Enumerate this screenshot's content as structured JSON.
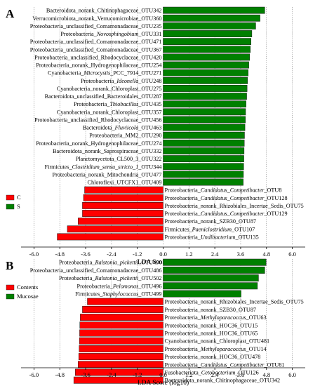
{
  "chart_data": [
    {
      "type": "bar",
      "panel_label": "A",
      "orientation": "horizontal",
      "xlabel": "LDA Score (log10)",
      "xlim": [
        -6.6,
        6.6
      ],
      "xticks": [
        -6.0,
        -4.8,
        -3.6,
        -2.4,
        -1.2,
        0.0,
        1.2,
        2.4,
        3.6,
        4.8,
        6.0
      ],
      "xtick_labels": [
        "-6.0",
        "-4.8",
        "-3.6",
        "-2.4",
        "-1.2",
        "0.0",
        "1.2",
        "2.4",
        "3.6",
        "4.8",
        "6.0"
      ],
      "grid": "vertical dotted",
      "legend_position": "left",
      "series": [
        {
          "name": "C",
          "color": "#ff0000"
        },
        {
          "name": "S",
          "color": "#008000"
        }
      ],
      "bars": [
        {
          "group": "S",
          "label": [
            {
              "t": "Bacteroidota_norank_Chitinophagaceae_OTU342"
            }
          ],
          "value": 4.72
        },
        {
          "group": "S",
          "label": [
            {
              "t": "Verrucomicrobiota_norank_Verrucomicrobiae_OTU360"
            }
          ],
          "value": 4.5
        },
        {
          "group": "S",
          "label": [
            {
              "t": "Proteobacteria_unclassified_Comamonadaceae_OTU235"
            }
          ],
          "value": 4.3
        },
        {
          "group": "S",
          "label": [
            {
              "t": "Proteobacteria_"
            },
            {
              "t": "Novosphingobium",
              "i": true
            },
            {
              "t": "_OTU331"
            }
          ],
          "value": 4.12
        },
        {
          "group": "S",
          "label": [
            {
              "t": "Proteobacteria_unclassified_Comamonadaceae_OTU471"
            }
          ],
          "value": 4.08
        },
        {
          "group": "S",
          "label": [
            {
              "t": "Proteobacteria_unclassified_Comamonadaceae_OTU367"
            }
          ],
          "value": 4.05
        },
        {
          "group": "S",
          "label": [
            {
              "t": "Proteobacteria_unclassified_Rhodocyclaceae_OTU420"
            }
          ],
          "value": 4.02
        },
        {
          "group": "S",
          "label": [
            {
              "t": "Proteobacteria_norank_Hydrogenophilaceae_OTU254"
            }
          ],
          "value": 3.98
        },
        {
          "group": "S",
          "label": [
            {
              "t": "Cyanobacteria_"
            },
            {
              "t": "Microcystis",
              "i": true
            },
            {
              "t": "_PCC_7914_OTU271"
            }
          ],
          "value": 3.95
        },
        {
          "group": "S",
          "label": [
            {
              "t": "Proteobacteria_"
            },
            {
              "t": "Ideonella",
              "i": true
            },
            {
              "t": "_OTU248"
            }
          ],
          "value": 3.92
        },
        {
          "group": "S",
          "label": [
            {
              "t": "Cyanobacteria_norank_Chloroplast_OTU275"
            }
          ],
          "value": 3.9
        },
        {
          "group": "S",
          "label": [
            {
              "t": "Bacteroidota_unclassified_Bacteroidales_OTU287"
            }
          ],
          "value": 3.88
        },
        {
          "group": "S",
          "label": [
            {
              "t": "Proteobacteria_"
            },
            {
              "t": "Thiobacillus",
              "i": true
            },
            {
              "t": "_OTU435"
            }
          ],
          "value": 3.85
        },
        {
          "group": "S",
          "label": [
            {
              "t": "Cyanobacteria_norank_Chloroplast_OTU357"
            }
          ],
          "value": 3.83
        },
        {
          "group": "S",
          "label": [
            {
              "t": "Proteobacteria_unclassified_Rhodocyclaceae_OTU456"
            }
          ],
          "value": 3.82
        },
        {
          "group": "S",
          "label": [
            {
              "t": "Bacteroidota_"
            },
            {
              "t": "Fluviicola",
              "i": true
            },
            {
              "t": "_OTU463"
            }
          ],
          "value": 3.8
        },
        {
          "group": "S",
          "label": [
            {
              "t": "Proteobacteria_MM2_OTU290"
            }
          ],
          "value": 3.78
        },
        {
          "group": "S",
          "label": [
            {
              "t": "Proteobacteria_norank_Hydrogenophilaceae_OTU274"
            }
          ],
          "value": 3.77
        },
        {
          "group": "S",
          "label": [
            {
              "t": "Bacteroidota_norank_Saprospiraceae_OTU332"
            }
          ],
          "value": 3.76
        },
        {
          "group": "S",
          "label": [
            {
              "t": "Planctomycetota_CL500_3_OTU322"
            }
          ],
          "value": 3.75
        },
        {
          "group": "S",
          "label": [
            {
              "t": "Firmicutes_"
            },
            {
              "t": "Clostridium_sensu_stricto_1",
              "i": true
            },
            {
              "t": "_OTU344"
            }
          ],
          "value": 3.74
        },
        {
          "group": "S",
          "label": [
            {
              "t": "Proteobacteria_norank_Mitochondria_OTU477"
            }
          ],
          "value": 3.73
        },
        {
          "group": "S",
          "label": [
            {
              "t": "Chloroflexi_UTCFX1_OTU409"
            }
          ],
          "value": 3.72
        },
        {
          "group": "C",
          "label": [
            {
              "t": "Proteobacteria_"
            },
            {
              "t": "Candidatus_Competibacter",
              "i": true
            },
            {
              "t": "_OTU8"
            }
          ],
          "value": -3.65
        },
        {
          "group": "C",
          "label": [
            {
              "t": "Proteobacteria_"
            },
            {
              "t": "Candidatus_Competibacter",
              "i": true
            },
            {
              "t": "_OTU128"
            }
          ],
          "value": -3.7
        },
        {
          "group": "C",
          "label": [
            {
              "t": "Proteobacteria_norank_Rhizobiales_Incertae_Sedis_OTU75"
            }
          ],
          "value": -3.75
        },
        {
          "group": "C",
          "label": [
            {
              "t": "Proteobacteria_"
            },
            {
              "t": "Candidatus_Competibacter",
              "i": true
            },
            {
              "t": "_OTU129"
            }
          ],
          "value": -3.75
        },
        {
          "group": "C",
          "label": [
            {
              "t": "Proteobacteria_norank_SZB30_OTU87"
            }
          ],
          "value": -3.95
        },
        {
          "group": "C",
          "label": [
            {
              "t": "Firmicutes_"
            },
            {
              "t": "Paeniclostridium",
              "i": true
            },
            {
              "t": "_OTU107"
            }
          ],
          "value": -4.45
        },
        {
          "group": "C",
          "label": [
            {
              "t": "Proteobacteria_"
            },
            {
              "t": "Undibacterium",
              "i": true
            },
            {
              "t": "_OTU135"
            }
          ],
          "value": -4.92
        }
      ]
    },
    {
      "type": "bar",
      "panel_label": "B",
      "orientation": "horizontal",
      "xlabel": "LDA Score (log10)",
      "xlim": [
        -6.6,
        6.6
      ],
      "xticks": [
        -6.0,
        -4.8,
        -3.6,
        -2.4,
        -1.2,
        0.0,
        1.2,
        2.4,
        3.6,
        4.8,
        6.0
      ],
      "xtick_labels": [
        "-6.0",
        "-4.8",
        "-3.6",
        "-2.4",
        "-1.2",
        "0.0",
        "1.2",
        "2.4",
        "3.6",
        "4.8",
        "6.0"
      ],
      "grid": "vertical dotted",
      "legend_position": "left",
      "series": [
        {
          "name": "Contents",
          "color": "#ff0000"
        },
        {
          "name": "Mucosae",
          "color": "#008000"
        }
      ],
      "bars": [
        {
          "group": "Mucosae",
          "label": [
            {
              "t": "Proteobacteria_"
            },
            {
              "t": "Ralstonia_pickettii",
              "i": true
            },
            {
              "t": "_OTU490"
            }
          ],
          "value": 4.78
        },
        {
          "group": "Mucosae",
          "label": [
            {
              "t": "Proteobacteria_unclassified_Comamonadaceae_OTU486"
            }
          ],
          "value": 4.72
        },
        {
          "group": "Mucosae",
          "label": [
            {
              "t": "Proteobacteria_"
            },
            {
              "t": "Ralstonia_pickettii",
              "i": true
            },
            {
              "t": "_OTU502"
            }
          ],
          "value": 4.43
        },
        {
          "group": "Mucosae",
          "label": [
            {
              "t": "Proteobacteria_"
            },
            {
              "t": "Pelomonas",
              "i": true
            },
            {
              "t": "_OTU496"
            }
          ],
          "value": 4.38
        },
        {
          "group": "Mucosae",
          "label": [
            {
              "t": "Firmicutes_"
            },
            {
              "t": "Staphylococcus",
              "i": true
            },
            {
              "t": "_OTU499"
            }
          ],
          "value": 3.62
        },
        {
          "group": "Contents",
          "label": [
            {
              "t": "Proteobacteria_norank_Rhizobiales_Incertae_Sedis_OTU75"
            }
          ],
          "value": -3.52
        },
        {
          "group": "Contents",
          "label": [
            {
              "t": "Proteobacteria_norank_SZB30_OTU87"
            }
          ],
          "value": -3.75
        },
        {
          "group": "Contents",
          "label": [
            {
              "t": "Proteobacteria_"
            },
            {
              "t": "Methyloparacoccus",
              "i": true
            },
            {
              "t": "_OTU63"
            }
          ],
          "value": -3.85
        },
        {
          "group": "Contents",
          "label": [
            {
              "t": "Proteobacteria_norank_HOC36_OTU15"
            }
          ],
          "value": -3.87
        },
        {
          "group": "Contents",
          "label": [
            {
              "t": "Proteobacteria_norank_HOC36_OTU65"
            }
          ],
          "value": -3.88
        },
        {
          "group": "Contents",
          "label": [
            {
              "t": "Cyanobacteria_norank_Chloroplast_OTU481"
            }
          ],
          "value": -3.89
        },
        {
          "group": "Contents",
          "label": [
            {
              "t": "Proteobacteria_"
            },
            {
              "t": "Methyloparacoccus",
              "i": true
            },
            {
              "t": "_OTU14"
            }
          ],
          "value": -3.9
        },
        {
          "group": "Contents",
          "label": [
            {
              "t": "Proteobacteria_norank_HOC36_OTU478"
            }
          ],
          "value": -3.92
        },
        {
          "group": "Contents",
          "label": [
            {
              "t": "Proteobacteria_"
            },
            {
              "t": "Candidatus_Competibacter",
              "i": true
            },
            {
              "t": "_OTU81"
            }
          ],
          "value": -3.95
        },
        {
          "group": "Contents",
          "label": [
            {
              "t": "Fusobacteriota_"
            },
            {
              "t": "Cetobacterium",
              "i": true
            },
            {
              "t": "_OTU126"
            }
          ],
          "value": -4.08
        },
        {
          "group": "Contents",
          "label": [
            {
              "t": "Bacteroidota_norank_Chitinophagaceae_OTU342"
            }
          ],
          "value": -4.15
        }
      ]
    }
  ]
}
